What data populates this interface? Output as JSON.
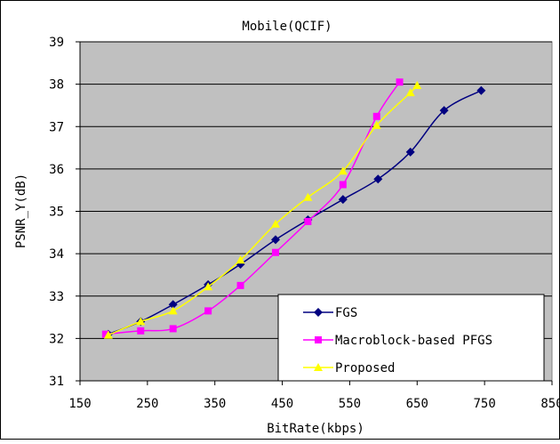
{
  "chart_data": {
    "type": "line",
    "title": "Mobile(QCIF)",
    "xlabel": "BitRate(kbps)",
    "ylabel": "PSNR_Y(dB)",
    "xlim": [
      150,
      850
    ],
    "ylim": [
      31,
      39
    ],
    "xticks": [
      150,
      250,
      350,
      450,
      550,
      650,
      750,
      850
    ],
    "yticks": [
      31,
      32,
      33,
      34,
      35,
      36,
      37,
      38,
      39
    ],
    "xtick_labels": [
      "150",
      "250",
      "350",
      "450",
      "550",
      "650",
      "750",
      "850"
    ],
    "ytick_labels": [
      "31",
      "32",
      "33",
      "34",
      "35",
      "36",
      "37",
      "38",
      "39"
    ],
    "grid": "horizontal",
    "plot_background": "#c0c0c0",
    "legend_position": "bottom-right",
    "series": [
      {
        "name": "FGS",
        "color": "#000080",
        "marker": "diamond",
        "x": [
          192,
          240,
          288,
          340,
          388,
          440,
          488,
          540,
          592,
          640,
          690,
          745
        ],
        "y": [
          32.1,
          32.4,
          32.8,
          33.27,
          33.75,
          34.33,
          34.8,
          35.28,
          35.76,
          36.4,
          37.38,
          37.85
        ]
      },
      {
        "name": "Macroblock-based PFGS",
        "color": "#ff00ff",
        "marker": "square",
        "x": [
          188,
          240,
          288,
          340,
          388,
          440,
          488,
          540,
          590,
          624
        ],
        "y": [
          32.1,
          32.18,
          32.23,
          32.65,
          33.25,
          34.03,
          34.76,
          35.63,
          37.24,
          38.05
        ]
      },
      {
        "name": "Proposed",
        "color": "#ffff00",
        "marker": "triangle",
        "x": [
          192,
          240,
          288,
          340,
          388,
          440,
          488,
          540,
          590,
          640,
          650
        ],
        "y": [
          32.08,
          32.4,
          32.65,
          33.22,
          33.85,
          34.7,
          35.33,
          35.95,
          37.03,
          37.8,
          37.97
        ]
      }
    ]
  }
}
